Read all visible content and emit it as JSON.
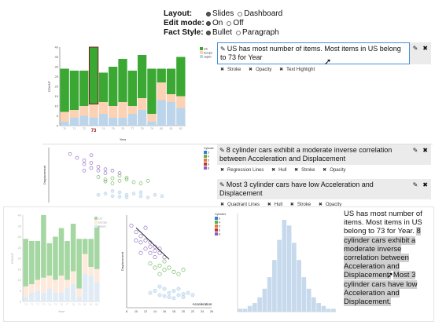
{
  "controls": {
    "layout_label": "Layout:",
    "layout_options": [
      "Slides",
      "Dashboard"
    ],
    "layout_selected": "Slides",
    "edit_label": "Edit mode:",
    "edit_options": [
      "On",
      "Off"
    ],
    "edit_selected": "On",
    "style_label": "Fact Style:",
    "style_options": [
      "Bullet",
      "Paragraph"
    ],
    "style_selected": "Bullet"
  },
  "facts": [
    {
      "text": "US has most number of items. Most items in US belong to 73 for Year",
      "options": [
        "Stroke",
        "Opacity",
        "Text Highlight"
      ]
    },
    {
      "text": "8 cylinder cars exhibit a moderate inverse correlation between Acceleration and Displacement",
      "options": [
        "Regression Lines",
        "Hull",
        "Stroke",
        "Opacity"
      ]
    },
    {
      "text": "Most 3 cylinder cars have low Acceleration and Displacement",
      "options": [
        "Quadrant Lines",
        "Hull",
        "Stroke",
        "Opacity"
      ]
    }
  ],
  "icons": {
    "edit": "pencil-icon",
    "close": "close-icon",
    "option_marker": "x-mark-icon",
    "radio": "radio-icon"
  },
  "narrative": {
    "sentence1": "US has most number of items. Most items in US belong to 73 for Year.",
    "sentence2": "8 cylinder cars exhibit a moderate inverse correlation between Acceleration and Displacement.",
    "sentence3": "Most 3 cylinder cars have low Acceleration and Displacement."
  },
  "colors": {
    "us": "#3aa832",
    "europe": "#fbd2b4",
    "japan": "#bcd5ea",
    "cyl_purple": "#8a5fc1",
    "cyl_green": "#5fb04a",
    "highlight": "#cfcfcf",
    "edit_border": "#4a90d9"
  },
  "chart_data": [
    {
      "type": "bar",
      "stacked": true,
      "ylabel": "COUNT",
      "xlabel": "Year",
      "ylim": [
        0,
        40
      ],
      "yticks": [
        0,
        5,
        10,
        15,
        20,
        25,
        30,
        35,
        40
      ],
      "categories": [
        "70",
        "71",
        "72",
        "73",
        "74",
        "75",
        "76",
        "77",
        "78",
        "79",
        "80",
        "81",
        "82"
      ],
      "highlight_category": "73",
      "legend": [
        "US",
        "Europe",
        "Japan"
      ],
      "series": [
        {
          "name": "Japan",
          "values": [
            2,
            4,
            5,
            4,
            6,
            4,
            4,
            6,
            8,
            2,
            13,
            12,
            9
          ]
        },
        {
          "name": "Europe",
          "values": [
            5,
            4,
            5,
            7,
            6,
            6,
            8,
            4,
            6,
            4,
            9,
            4,
            6
          ]
        },
        {
          "name": "US",
          "values": [
            22,
            20,
            18,
            29,
            15,
            20,
            22,
            18,
            22,
            23,
            7,
            13,
            20
          ]
        }
      ]
    },
    {
      "type": "scatter",
      "ylabel": "Displacement",
      "legend_title": "Cylinders",
      "legend": [
        "3",
        "4",
        "5",
        "6",
        "8"
      ],
      "series": [
        {
          "name": "8",
          "x": [
            9,
            10,
            11,
            11,
            12,
            12,
            13,
            13,
            14,
            14,
            15,
            16,
            12,
            11
          ],
          "y": [
            430,
            400,
            380,
            350,
            360,
            320,
            330,
            300,
            310,
            280,
            300,
            280,
            420,
            300
          ]
        },
        {
          "name": "6",
          "x": [
            13,
            14,
            15,
            16,
            17,
            18,
            19,
            20,
            16,
            15,
            17,
            14
          ],
          "y": [
            250,
            230,
            240,
            220,
            230,
            210,
            200,
            220,
            260,
            200,
            245,
            215
          ]
        },
        {
          "name": "4",
          "x": [
            13,
            14,
            15,
            16,
            17,
            18,
            19,
            20,
            21,
            22,
            15,
            17,
            19,
            16
          ],
          "y": [
            110,
            120,
            100,
            130,
            110,
            120,
            100,
            90,
            110,
            100,
            140,
            90,
            130,
            95
          ]
        }
      ]
    },
    {
      "type": "bar",
      "stacked": true,
      "ylabel": "COUNT",
      "xlabel": "Year",
      "ylim": [
        0,
        40
      ],
      "yticks": [
        0,
        5,
        10,
        15,
        20,
        25,
        30,
        35,
        40
      ],
      "categories": [
        "70",
        "71",
        "72",
        "73",
        "74",
        "75",
        "76",
        "77",
        "78",
        "79",
        "80",
        "81",
        "82"
      ],
      "legend": [
        "US",
        "Europe",
        "Japan"
      ],
      "series": [
        {
          "name": "Japan",
          "values": [
            2,
            4,
            5,
            4,
            6,
            4,
            4,
            6,
            8,
            2,
            13,
            12,
            9
          ]
        },
        {
          "name": "Europe",
          "values": [
            5,
            4,
            5,
            7,
            6,
            6,
            8,
            4,
            6,
            4,
            9,
            4,
            6
          ]
        },
        {
          "name": "US",
          "values": [
            22,
            20,
            18,
            29,
            15,
            20,
            22,
            18,
            22,
            23,
            7,
            13,
            20
          ]
        }
      ]
    },
    {
      "type": "scatter",
      "ylabel": "Displacement",
      "xlabel": "Acceleration",
      "xlim": [
        8,
        26
      ],
      "xticks": [
        8,
        10,
        12,
        14,
        16,
        18,
        20,
        22,
        24,
        26
      ],
      "legend_title": "Cylinders",
      "legend": [
        "3",
        "4",
        "5",
        "6",
        "8"
      ],
      "series": [
        {
          "name": "8",
          "x": [
            9,
            10,
            11,
            11,
            12,
            12,
            13,
            13,
            14,
            14,
            15,
            16,
            12,
            11,
            10,
            13,
            14,
            15
          ],
          "y": [
            430,
            400,
            380,
            350,
            360,
            320,
            330,
            300,
            310,
            280,
            300,
            280,
            420,
            300,
            360,
            350,
            330,
            320
          ]
        },
        {
          "name": "6",
          "x": [
            13,
            14,
            15,
            16,
            17,
            18,
            19,
            20,
            16,
            15
          ],
          "y": [
            250,
            230,
            240,
            220,
            230,
            210,
            200,
            220,
            260,
            200
          ]
        },
        {
          "name": "4",
          "x": [
            13,
            14,
            15,
            16,
            17,
            18,
            19,
            20,
            21,
            22,
            15,
            17,
            19,
            16,
            18,
            20
          ],
          "y": [
            110,
            120,
            100,
            130,
            110,
            120,
            100,
            90,
            110,
            100,
            140,
            90,
            130,
            95,
            85,
            105
          ]
        }
      ],
      "regression": {
        "from": [
          10,
          420
        ],
        "to": [
          17,
          270
        ]
      }
    },
    {
      "type": "bar",
      "values": [
        1,
        1,
        2,
        3,
        5,
        8,
        12,
        18,
        25,
        32,
        30,
        24,
        18,
        12,
        8,
        5,
        3,
        2,
        1,
        1
      ]
    }
  ]
}
